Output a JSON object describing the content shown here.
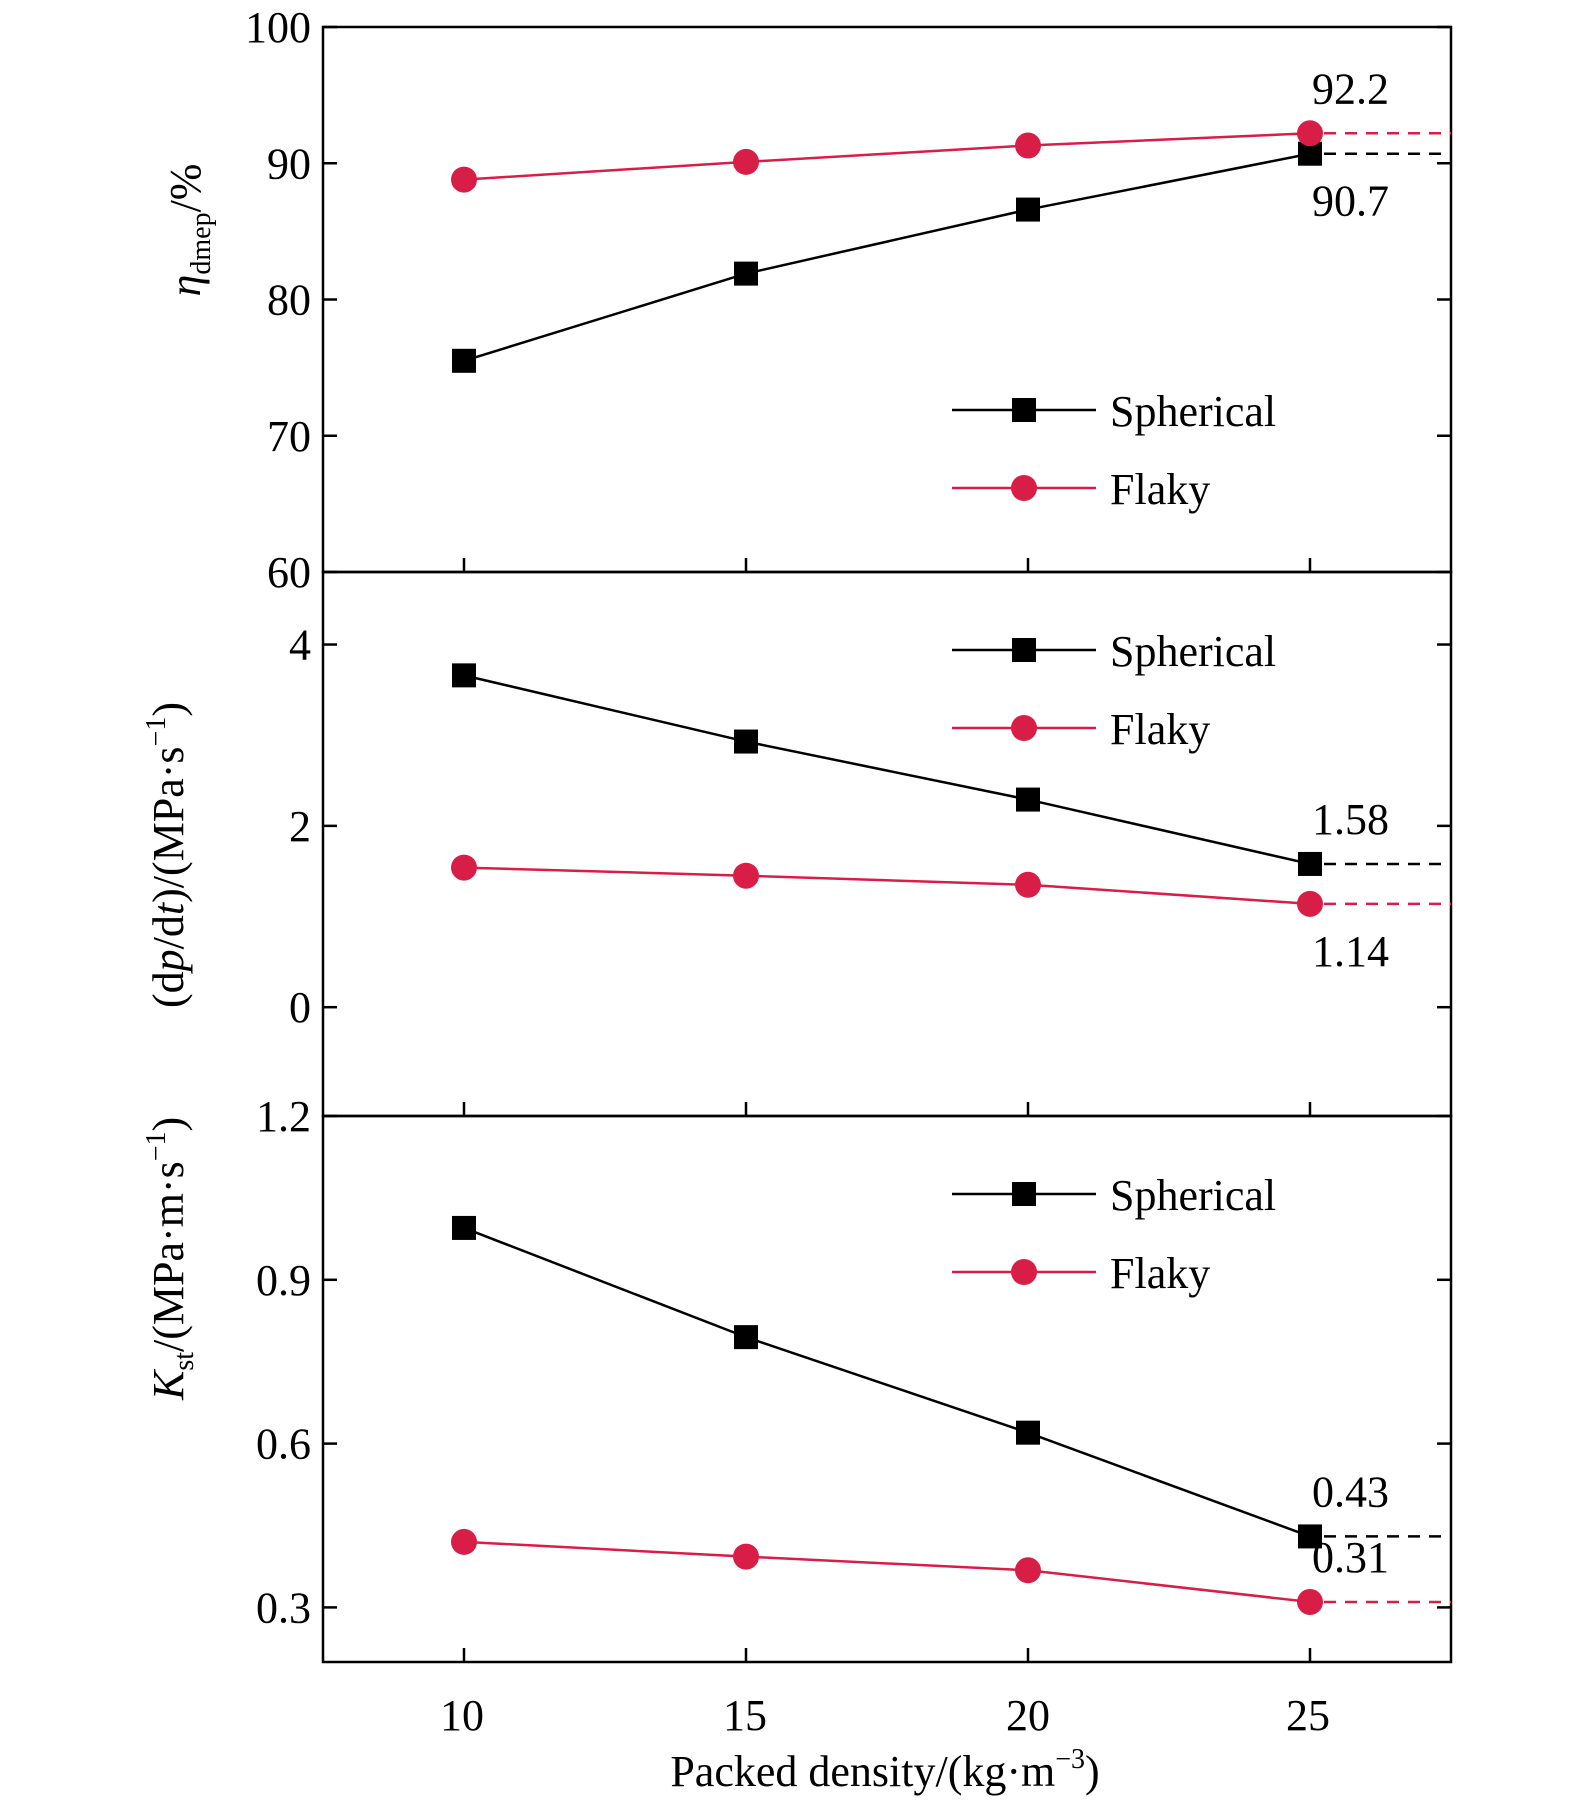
{
  "colors": {
    "spherical": "#000000",
    "flaky": "#d81e47",
    "axis": "#000000"
  },
  "xaxis": {
    "label_main": "Packed density/(kg·m",
    "label_sup": "−3",
    "label_close": ")",
    "ticks": [
      10,
      15,
      20,
      25
    ],
    "range": [
      7.5,
      27.5
    ]
  },
  "chart_data": [
    {
      "type": "line",
      "panel": "top",
      "ylabel": {
        "symbol": "η",
        "subscript": "dmep",
        "rest": "/%"
      },
      "ylim": [
        60,
        100
      ],
      "yticks": [
        "100",
        "90",
        "80",
        "70",
        "60"
      ],
      "yticks_values": [
        100,
        90,
        80,
        70,
        60
      ],
      "x": [
        10,
        15,
        20,
        25
      ],
      "legend_position": "lower-right",
      "series": [
        {
          "name": "Spherical",
          "marker": "square",
          "values": [
            75.5,
            81.9,
            86.6,
            90.7
          ]
        },
        {
          "name": "Flaky",
          "marker": "circle",
          "values": [
            88.8,
            90.1,
            91.3,
            92.2
          ]
        }
      ],
      "annotations": [
        {
          "series": 1,
          "text": "92.2",
          "value": 92.2,
          "place": "above"
        },
        {
          "series": 0,
          "text": "90.7",
          "value": 90.7,
          "place": "below"
        }
      ]
    },
    {
      "type": "line",
      "panel": "middle",
      "ylabel": {
        "prefix": "(d",
        "p": "p",
        "mid": "/d",
        "t": "t",
        "unit": ")/(MPa·s",
        "sup": "−1",
        "close": ")"
      },
      "ylim": [
        -1.2,
        4.8
      ],
      "yticks": [
        "4",
        "2",
        "0"
      ],
      "yticks_values": [
        4,
        2,
        0
      ],
      "x": [
        10,
        15,
        20,
        25
      ],
      "legend_position": "upper-right",
      "series": [
        {
          "name": "Spherical",
          "marker": "square",
          "values": [
            3.66,
            2.93,
            2.29,
            1.58
          ]
        },
        {
          "name": "Flaky",
          "marker": "circle",
          "values": [
            1.54,
            1.45,
            1.35,
            1.14
          ]
        }
      ],
      "annotations": [
        {
          "series": 0,
          "text": "1.58",
          "value": 1.58,
          "place": "above"
        },
        {
          "series": 1,
          "text": "1.14",
          "value": 1.14,
          "place": "below"
        }
      ]
    },
    {
      "type": "line",
      "panel": "bottom",
      "ylabel": {
        "symbol": "K",
        "subscript": "st",
        "rest": "/(MPa·m·s",
        "sup": "−1",
        "close": ")"
      },
      "ylim": [
        0.2,
        1.2
      ],
      "yticks": [
        "1.2",
        "0.9",
        "0.6",
        "0.3"
      ],
      "yticks_values": [
        1.2,
        0.9,
        0.6,
        0.3
      ],
      "x": [
        10,
        15,
        20,
        25
      ],
      "legend_position": "upper-right",
      "series": [
        {
          "name": "Spherical",
          "marker": "square",
          "values": [
            0.995,
            0.795,
            0.62,
            0.43
          ]
        },
        {
          "name": "Flaky",
          "marker": "circle",
          "values": [
            0.42,
            0.393,
            0.368,
            0.31
          ]
        }
      ],
      "annotations": [
        {
          "series": 0,
          "text": "0.43",
          "value": 0.43,
          "place": "above"
        },
        {
          "series": 1,
          "text": "0.31",
          "value": 0.31,
          "place": "above"
        }
      ]
    }
  ]
}
